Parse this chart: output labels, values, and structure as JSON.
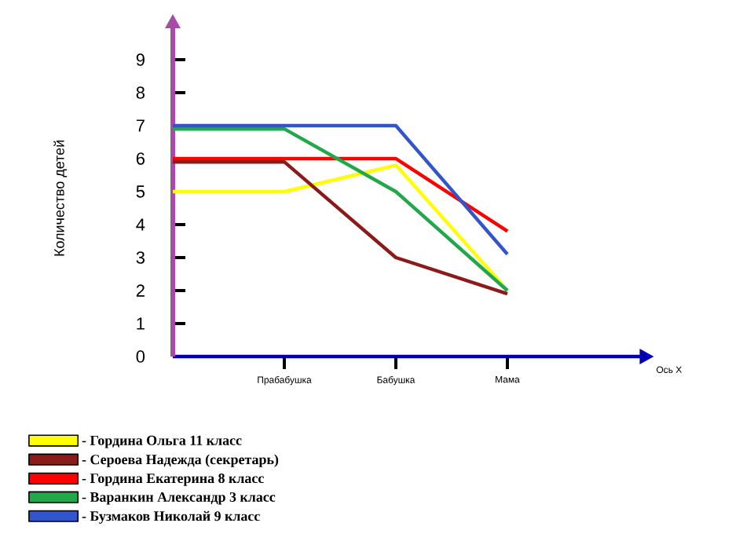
{
  "chart_data": {
    "type": "line",
    "categories": [
      null,
      "Прабабушка",
      "Бабушка",
      "Мама"
    ],
    "xlabel": "Ось Х",
    "ylabel": "Количество детей",
    "ylim": [
      0,
      10
    ],
    "yticks": [
      0,
      1,
      2,
      3,
      4,
      5,
      6,
      7,
      8,
      9
    ],
    "legend": "bottom left",
    "grid": false,
    "marker": "none",
    "line_style": "solid",
    "series": [
      {
        "name": "-  Гордина Ольга 11 класс",
        "color": "#ffff00",
        "values": [
          5,
          5,
          5.8,
          2
        ]
      },
      {
        "name": "- Сероева Надежда (секретарь)",
        "color": "#8b1a1a",
        "values": [
          5.9,
          5.9,
          3,
          1.9
        ]
      },
      {
        "name": "- Гордина Екатерина 8 класс",
        "color": "#ff0000",
        "values": [
          6,
          6,
          6,
          3.8
        ]
      },
      {
        "name": "- Варанкин Александр 3 класс",
        "color": "#22a84a",
        "values": [
          6.9,
          6.9,
          5,
          2
        ]
      },
      {
        "name": "- Бузмаков Николай 9 класс",
        "color": "#3355cc",
        "values": [
          7,
          7,
          7,
          3.1
        ]
      }
    ]
  }
}
